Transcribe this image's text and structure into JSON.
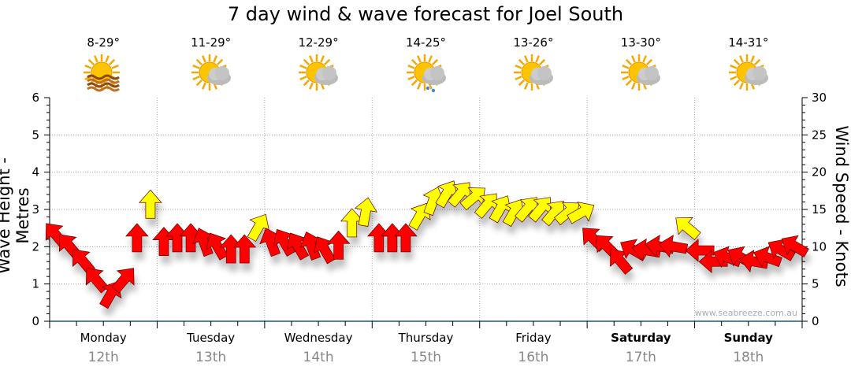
{
  "chart_data": {
    "type": "scatter",
    "title": "7 day wind & wave forecast for Joel South",
    "ylabel": "Wave Height - Metres",
    "y2label": "Wind Speed - Knots",
    "ylim": [
      0,
      6
    ],
    "y2lim": [
      0,
      30
    ],
    "yticks": [
      "0",
      "1",
      "2",
      "3",
      "4",
      "5",
      "6"
    ],
    "y2ticks": [
      "0",
      "5",
      "10",
      "15",
      "20",
      "25",
      "30"
    ],
    "watermark": "www.seabreeze.com.au",
    "days": [
      {
        "day": "Monday",
        "date": "12th",
        "temp": "8-29°",
        "icon": "sun-haze-icon",
        "weekend": false
      },
      {
        "day": "Tuesday",
        "date": "13th",
        "temp": "11-29°",
        "icon": "sun-cloud-icon",
        "weekend": false
      },
      {
        "day": "Wednesday",
        "date": "14th",
        "temp": "12-29°",
        "icon": "sun-cloud-icon",
        "weekend": false
      },
      {
        "day": "Thursday",
        "date": "15th",
        "temp": "14-25°",
        "icon": "sun-cloud-rain-icon",
        "weekend": false
      },
      {
        "day": "Friday",
        "date": "16th",
        "temp": "13-26°",
        "icon": "sun-cloud-icon",
        "weekend": false
      },
      {
        "day": "Saturday",
        "date": "17th",
        "temp": "13-30°",
        "icon": "sun-cloud-icon",
        "weekend": true
      },
      {
        "day": "Sunday",
        "date": "18th",
        "temp": "14-31°",
        "icon": "sun-cloud-icon",
        "weekend": true
      }
    ],
    "wind_color_threshold_knots": 12,
    "colors": {
      "light": "#ff0000",
      "strong": "#ffff00"
    },
    "wind_series": {
      "name": "Wind (knots, arrow angle deg clockwise from up), 3-hourly",
      "speed": [
        11.5,
        10,
        8,
        5.5,
        3.5,
        5.5,
        11,
        15.5,
        10.5,
        11,
        11,
        10.5,
        10,
        9.5,
        9.5,
        12.5,
        10.5,
        10.5,
        10,
        10,
        9.5,
        10,
        13,
        14.5,
        11,
        11,
        11,
        14,
        16,
        17,
        17,
        16.5,
        15.5,
        15,
        14.5,
        15,
        15,
        14.5,
        14.5,
        14.5,
        11,
        10,
        8,
        9.5,
        9.5,
        10,
        10,
        12.5,
        9.5,
        8,
        8.5,
        8.5,
        8,
        8.5,
        9.5,
        10
      ],
      "angle": [
        -40,
        -40,
        -40,
        -40,
        30,
        40,
        0,
        0,
        0,
        0,
        0,
        -20,
        -30,
        0,
        0,
        30,
        -20,
        -30,
        -30,
        -20,
        -30,
        0,
        0,
        10,
        0,
        0,
        0,
        30,
        20,
        30,
        40,
        50,
        40,
        30,
        30,
        40,
        40,
        40,
        50,
        60,
        -45,
        -45,
        -40,
        -60,
        -80,
        -80,
        -80,
        -50,
        -90,
        -90,
        -70,
        -60,
        -80,
        -70,
        -60,
        -60
      ]
    }
  }
}
